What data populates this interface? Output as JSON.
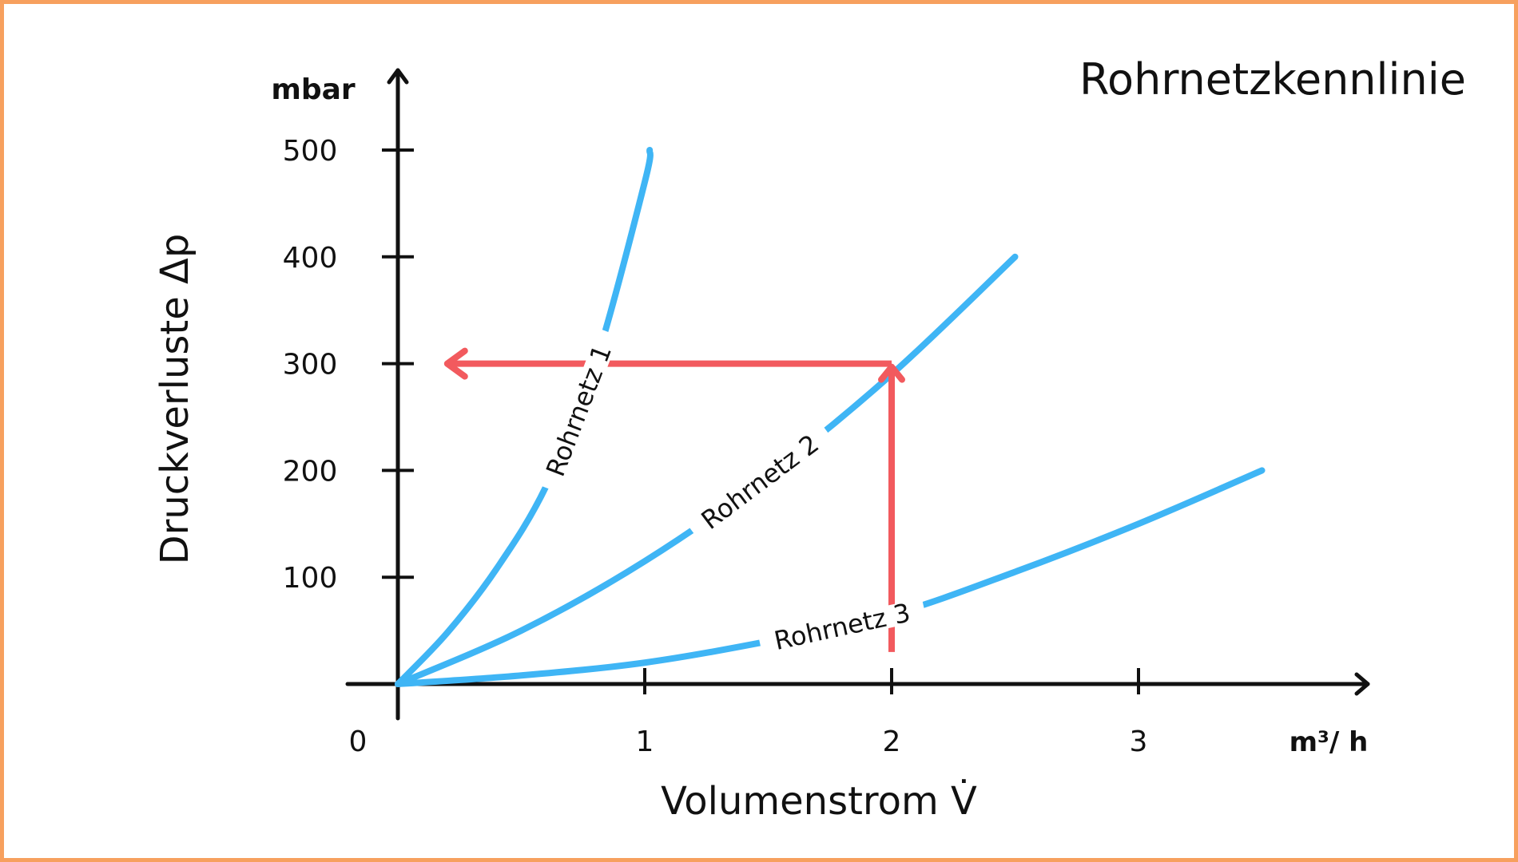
{
  "chart_data": {
    "type": "line",
    "title": "Rohrnetzkennlinie",
    "xlabel": "Volumenstrom V̇",
    "ylabel": "Druckverluste Δp",
    "x_unit": "m³/ h",
    "y_unit": "mbar",
    "origin_label": "0",
    "xticks": [
      "1",
      "2",
      "3"
    ],
    "yticks": [
      "100",
      "200",
      "300",
      "400",
      "500"
    ],
    "xlim": [
      0,
      4
    ],
    "ylim": [
      0,
      600
    ],
    "grid": false,
    "series": [
      {
        "name": "Rohrnetz 1",
        "x": [
          0,
          0.2,
          0.4,
          0.6,
          0.8,
          1.0,
          1.02
        ],
        "y": [
          0,
          48,
          108,
          185,
          300,
          470,
          500
        ]
      },
      {
        "name": "Rohrnetz 2",
        "x": [
          0,
          0.5,
          1.0,
          1.5,
          2.0,
          2.5
        ],
        "y": [
          0,
          50,
          115,
          195,
          290,
          400
        ]
      },
      {
        "name": "Rohrnetz 3",
        "x": [
          0,
          0.5,
          1.0,
          1.5,
          2.0,
          2.5,
          3.0,
          3.5
        ],
        "y": [
          0,
          8,
          20,
          40,
          65,
          105,
          150,
          200
        ]
      }
    ],
    "colors": {
      "curves": "#3fb5f5",
      "marker_arrow": "#f25a5e",
      "axes": "#111111",
      "border": "#f7a05e"
    },
    "annotation": {
      "type": "read-off arrows",
      "from_x": 2,
      "to_y": 300
    }
  }
}
